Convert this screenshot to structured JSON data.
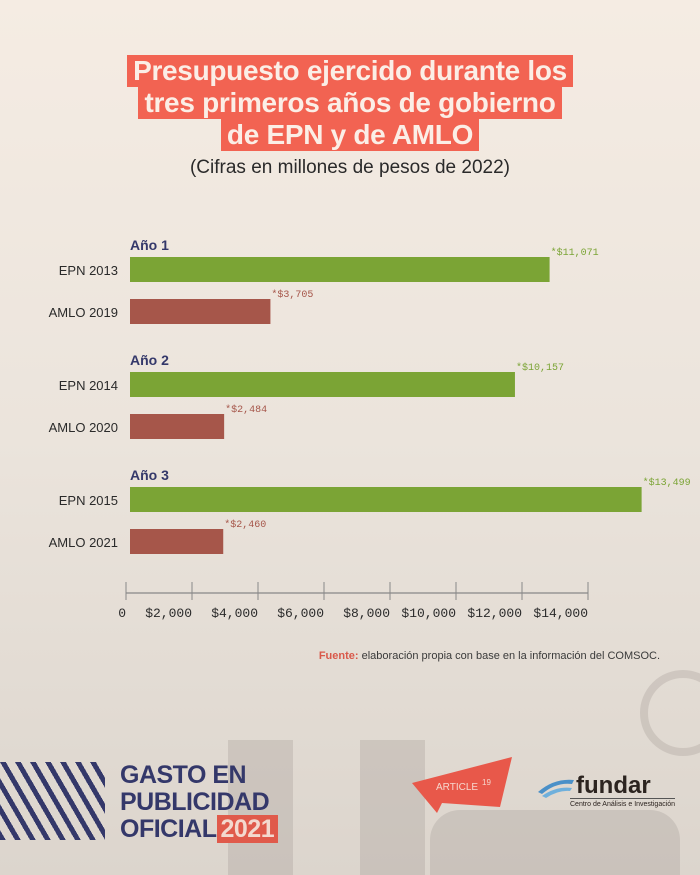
{
  "title_lines": [
    "Presupuesto ejercido durante los",
    "tres primeros años de gobierno",
    "de EPN y de AMLO"
  ],
  "subtitle": "(Cifras en millones de pesos de 2022)",
  "colors": {
    "epn": "#7ba435",
    "amlo": "#a6564a",
    "group_label": "#34386a",
    "title_bg": "#f26352"
  },
  "chart_data": {
    "type": "bar",
    "orientation": "horizontal",
    "title": "Presupuesto ejercido durante los tres primeros años de gobierno de EPN y de AMLO",
    "subtitle": "(Cifras en millones de pesos de 2022)",
    "groups": [
      {
        "label": "Año 1",
        "bars": [
          {
            "category": "EPN 2013",
            "value": 11071,
            "label": "*$11,071",
            "series": "EPN"
          },
          {
            "category": "AMLO 2019",
            "value": 3705,
            "label": "*$3,705",
            "series": "AMLO"
          }
        ]
      },
      {
        "label": "Año 2",
        "bars": [
          {
            "category": "EPN 2014",
            "value": 10157,
            "label": "*$10,157",
            "series": "EPN"
          },
          {
            "category": "AMLO 2020",
            "value": 2484,
            "label": "*$2,484",
            "series": "AMLO"
          }
        ]
      },
      {
        "label": "Año 3",
        "bars": [
          {
            "category": "EPN 2015",
            "value": 13499,
            "label": "*$13,499",
            "series": "EPN"
          },
          {
            "category": "AMLO 2021",
            "value": 2460,
            "label": "*$2,460",
            "series": "AMLO"
          }
        ]
      }
    ],
    "xticks": [
      0,
      2000,
      4000,
      6000,
      8000,
      10000,
      12000,
      14000
    ],
    "xtick_labels": [
      "0",
      "$2,000",
      "$4,000",
      "$6,000",
      "$8,000",
      "$10,000",
      "$12,000",
      "$14,000"
    ],
    "xlim": [
      0,
      14000
    ],
    "grid": false
  },
  "source": {
    "label": "Fuente:",
    "text": " elaboración propia con base en la información del COMSOC."
  },
  "brand": {
    "line1": "GASTO EN",
    "line2": "PUBLICIDAD",
    "line3": "OFICIAL",
    "year": "2021"
  },
  "logos": {
    "article19": "ARTICLE",
    "article19_sup": "19",
    "fundar": "fundar",
    "fundar_sub": "Centro de Análisis e Investigación"
  }
}
